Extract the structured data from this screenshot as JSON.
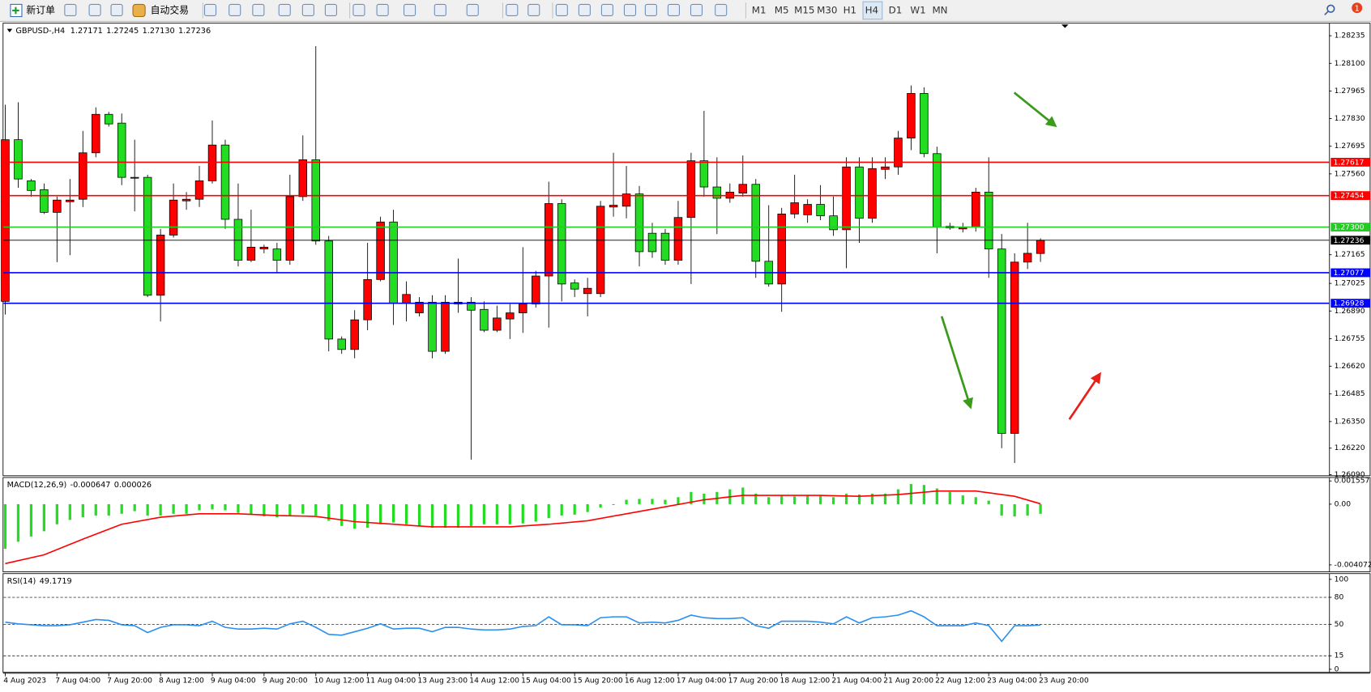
{
  "toolbar": {
    "new_order": "新订单",
    "auto_trading": "自动交易",
    "timeframes": [
      "M1",
      "M5",
      "M15",
      "M30",
      "H1",
      "H4",
      "D1",
      "W1",
      "MN"
    ],
    "notification": "1"
  },
  "chart_data": [
    {
      "type": "candlestick",
      "symbol": "GBPUSD-,H4",
      "quote_labels": [
        "1.27171",
        "1.27245",
        "1.27130",
        "1.27236"
      ],
      "up_color": "#ff0000",
      "down_color": "#22dd22",
      "categories": [
        "4 Aug 2023",
        null,
        null,
        null,
        "7 Aug 04:00",
        null,
        null,
        null,
        "7 Aug 20:00",
        null,
        null,
        null,
        "8 Aug 12:00",
        null,
        null,
        null,
        "9 Aug 04:00",
        null,
        null,
        null,
        "9 Aug 20:00",
        null,
        null,
        null,
        "10 Aug 12:00",
        null,
        null,
        null,
        "11 Aug 04:00",
        null,
        null,
        null,
        "13 Aug 23:00",
        null,
        null,
        null,
        "14 Aug 12:00",
        null,
        null,
        null,
        "15 Aug 04:00",
        null,
        null,
        null,
        "15 Aug 20:00",
        null,
        null,
        null,
        "16 Aug 12:00",
        null,
        null,
        null,
        "17 Aug 04:00",
        null,
        null,
        null,
        "17 Aug 20:00",
        null,
        null,
        null,
        "18 Aug 12:00",
        null,
        null,
        null,
        "21 Aug 04:00",
        null,
        null,
        null,
        "21 Aug 20:00",
        null,
        null,
        null,
        "22 Aug 12:00",
        null,
        null,
        null,
        "23 Aug 04:00",
        null,
        null,
        null,
        "23 Aug 20:00"
      ],
      "open": [
        1.26937,
        1.27727,
        1.27526,
        1.27483,
        1.27372,
        1.27424,
        1.27436,
        1.27663,
        1.27851,
        1.27808,
        1.27539,
        1.27543,
        1.26967,
        1.27261,
        1.27428,
        1.27436,
        1.27526,
        1.27701,
        1.27338,
        1.27138,
        1.27193,
        1.27193,
        1.27138,
        1.27449,
        1.27629,
        1.27232,
        1.26753,
        1.26702,
        1.26847,
        1.27044,
        1.27325,
        1.26928,
        1.26881,
        1.26933,
        1.26693,
        1.26924,
        1.26933,
        1.26898,
        1.26796,
        1.26851,
        1.26881,
        1.26924,
        1.27061,
        1.27415,
        1.27027,
        1.26975,
        1.26975,
        1.27398,
        1.27402,
        1.27462,
        1.2727,
        1.2727,
        1.27138,
        1.27347,
        1.27624,
        1.27496,
        1.27441,
        1.27466,
        1.27509,
        1.27133,
        1.27022,
        1.27364,
        1.2736,
        1.27411,
        1.27355,
        1.27287,
        1.27594,
        1.27343,
        1.27582,
        1.27594,
        1.27735,
        1.27953,
        1.27659,
        1.27296,
        1.27291,
        1.273,
        1.27471,
        1.27193,
        1.26292,
        1.27129,
        1.27171
      ],
      "high": [
        1.27898,
        1.2791,
        1.27535,
        1.27513,
        1.27449,
        1.27535,
        1.2777,
        1.27885,
        1.27863,
        1.27855,
        1.27727,
        1.27556,
        1.27291,
        1.27513,
        1.27471,
        1.27599,
        1.27821,
        1.27727,
        1.27513,
        1.27385,
        1.27214,
        1.27223,
        1.27556,
        1.27748,
        1.28184,
        1.27257,
        1.26766,
        1.26894,
        1.27223,
        1.27351,
        1.27385,
        1.27035,
        1.26958,
        1.26967,
        1.26967,
        1.27146,
        1.26958,
        1.26937,
        1.26916,
        1.26924,
        1.27202,
        1.27086,
        1.27522,
        1.27436,
        1.27044,
        1.27052,
        1.27428,
        1.27663,
        1.27599,
        1.27501,
        1.27321,
        1.27291,
        1.27428,
        1.27663,
        1.27868,
        1.27641,
        1.27513,
        1.2765,
        1.27535,
        1.27407,
        1.27394,
        1.27556,
        1.27436,
        1.27505,
        1.27449,
        1.27641,
        1.27641,
        1.27641,
        1.27641,
        1.2777,
        1.27992,
        1.27983,
        1.27693,
        1.27321,
        1.27321,
        1.27492,
        1.27641,
        1.27266,
        1.27172,
        1.27321,
        1.27245
      ],
      "low": [
        1.26873,
        1.27492,
        1.27449,
        1.27364,
        1.27129,
        1.27163,
        1.27398,
        1.27641,
        1.27791,
        1.27505,
        1.27377,
        1.26958,
        1.26839,
        1.27249,
        1.27385,
        1.27398,
        1.27513,
        1.27291,
        1.27108,
        1.27129,
        1.27172,
        1.27078,
        1.27116,
        1.27428,
        1.27214,
        1.26693,
        1.26681,
        1.26659,
        1.26796,
        1.27035,
        1.26822,
        1.26839,
        1.26864,
        1.26659,
        1.26681,
        1.26881,
        1.26164,
        1.26787,
        1.26787,
        1.26753,
        1.26783,
        1.26907,
        1.26809,
        1.26937,
        1.26958,
        1.26864,
        1.26958,
        1.27351,
        1.27343,
        1.27108,
        1.2715,
        1.27116,
        1.27116,
        1.27022,
        1.27449,
        1.27266,
        1.27419,
        1.27449,
        1.27052,
        1.27009,
        1.26886,
        1.27343,
        1.27321,
        1.27334,
        1.27257,
        1.27099,
        1.27223,
        1.27321,
        1.27535,
        1.27556,
        1.27676,
        1.27641,
        1.27172,
        1.27287,
        1.27274,
        1.27278,
        1.27052,
        1.2622,
        1.26147,
        1.27095,
        1.2713
      ],
      "close": [
        1.27727,
        1.27535,
        1.27479,
        1.27372,
        1.27432,
        1.27432,
        1.27663,
        1.27851,
        1.27804,
        1.27543,
        1.27543,
        1.26967,
        1.27261,
        1.27432,
        1.27436,
        1.27526,
        1.27701,
        1.27338,
        1.27138,
        1.27202,
        1.27202,
        1.27138,
        1.27449,
        1.27629,
        1.27232,
        1.26753,
        1.26702,
        1.26847,
        1.27044,
        1.27325,
        1.26928,
        1.26971,
        1.26933,
        1.26693,
        1.26933,
        1.26933,
        1.26894,
        1.26796,
        1.26856,
        1.26881,
        1.26924,
        1.27061,
        1.27415,
        1.27022,
        1.26997,
        1.27001,
        1.27402,
        1.27407,
        1.27462,
        1.2718,
        1.2718,
        1.27138,
        1.27347,
        1.27624,
        1.27496,
        1.27441,
        1.27471,
        1.27509,
        1.27133,
        1.27022,
        1.27364,
        1.27419,
        1.27411,
        1.27355,
        1.27287,
        1.27594,
        1.27343,
        1.27586,
        1.27594,
        1.27735,
        1.27953,
        1.27659,
        1.273,
        1.27304,
        1.273,
        1.27471,
        1.27193,
        1.26292,
        1.27129,
        1.27172,
        1.27236
      ],
      "ylim": [
        1.26083,
        1.2829
      ],
      "yticks": [
        1.28235,
        {
          "value": 1.281,
          "label": "1.28100"
        },
        1.27965,
        {
          "value": 1.2783,
          "label": "1.27830"
        },
        1.27695,
        {
          "value": 1.2756,
          "label": "1.27560"
        },
        1.27165,
        1.27025,
        {
          "value": 1.2689,
          "label": "1.26890"
        },
        1.26755,
        {
          "value": 1.2662,
          "label": "1.26620"
        },
        1.26485,
        {
          "value": 1.2635,
          "label": "1.26350"
        },
        {
          "value": 1.2622,
          "label": "1.26220"
        },
        {
          "value": 1.2609,
          "label": "1.26090"
        }
      ],
      "hlines": [
        {
          "value": 1.27617,
          "color": "#ff0000"
        },
        {
          "value": 1.27454,
          "color": "#ff0000"
        },
        {
          "value": 1.273,
          "label": "1.27300",
          "color": "#22cc22"
        },
        {
          "value": 1.27077,
          "color": "#0000ff"
        },
        {
          "value": 1.26928,
          "color": "#0000ff"
        }
      ],
      "current_price_color": "#000000"
    },
    {
      "type": "macd",
      "title": "MACD(12,26,9)",
      "histogram": {
        "color": "#22dd22",
        "values": [
          -0.002989,
          -0.00252,
          -0.002168,
          -0.001817,
          -0.001348,
          -0.001055,
          -0.000879,
          -0.000762,
          -0.000762,
          -0.000645,
          -0.000469,
          -0.000762,
          -0.000762,
          -0.000645,
          -0.000645,
          -0.00041,
          -0.000352,
          -0.00041,
          -0.000586,
          -0.000703,
          -0.00082,
          -0.000879,
          -0.000762,
          -0.000645,
          -0.000762,
          -0.001113,
          -0.001465,
          -0.001641,
          -0.001582,
          -0.001348,
          -0.001231,
          -0.001348,
          -0.001465,
          -0.001582,
          -0.001582,
          -0.001582,
          -0.001465,
          -0.001348,
          -0.001348,
          -0.001348,
          -0.001289,
          -0.001172,
          -0.000938,
          -0.000762,
          -0.000703,
          -0.000527,
          -0.000234,
          -5.9e-05,
          0.000293,
          0.000352,
          0.000352,
          0.000293,
          0.000469,
          0.00082,
          0.000703,
          0.00082,
          0.000996,
          0.001113,
          0.000703,
          0.000469,
          0.000586,
          0.000527,
          0.000586,
          0.000586,
          0.000469,
          0.000703,
          0.000645,
          0.000703,
          0.000703,
          0.000996,
          0.001348,
          0.001289,
          0.001055,
          0.00082,
          0.000586,
          0.000469,
          0.000234,
          -0.000762,
          -0.00082,
          -0.000762,
          -0.000647
        ]
      },
      "signal": {
        "color": "#ff0000",
        "x": [
          0,
          3,
          6,
          9,
          12,
          15,
          18,
          21,
          24,
          27,
          30,
          33,
          36,
          39,
          42,
          45,
          48,
          51,
          54,
          57,
          60,
          63,
          66,
          69,
          72,
          75,
          78,
          80
        ],
        "values": [
          -0.003985,
          -0.003399,
          -0.002344,
          -0.001348,
          -0.000879,
          -0.000645,
          -0.000645,
          -0.000762,
          -0.00082,
          -0.001172,
          -0.001348,
          -0.001524,
          -0.001524,
          -0.001524,
          -0.001348,
          -0.001113,
          -0.000645,
          -0.000176,
          0.000293,
          0.000586,
          0.000586,
          0.000586,
          0.000527,
          0.000645,
          0.000879,
          0.000879,
          0.000527,
          2.6e-05
        ]
      },
      "ylim": [
        -0.00457,
        0.0017
      ],
      "yticks": [
        0.001557,
        {
          "value": 0,
          "label": "0.00"
        },
        -0.004072
      ]
    },
    {
      "type": "line",
      "title": "RSI(14)",
      "color": "#2a8ff0",
      "values": [
        52.4,
        50.5,
        49.5,
        48.5,
        48.5,
        49.5,
        52.4,
        55.3,
        54.4,
        49.5,
        48.5,
        40.8,
        46.6,
        49.5,
        49.5,
        48.5,
        53.4,
        46.6,
        44.7,
        44.7,
        45.6,
        44.7,
        50.5,
        53.4,
        46.6,
        38.8,
        37.9,
        41.7,
        45.6,
        50.5,
        44.7,
        45.6,
        45.6,
        41.7,
        46.6,
        46.6,
        44.7,
        43.7,
        43.7,
        44.7,
        47.6,
        48.5,
        58.3,
        49.5,
        49.5,
        48.5,
        57.3,
        58.3,
        58.3,
        51.5,
        52.4,
        51.5,
        54.4,
        60.2,
        57.3,
        56.3,
        56.3,
        57.3,
        48.5,
        45.6,
        53.4,
        53.4,
        53.4,
        52.4,
        50.5,
        58.3,
        51.5,
        57.3,
        58.3,
        60.2,
        65.0,
        58.3,
        48.5,
        48.5,
        48.5,
        51.5,
        48.5,
        31.1,
        48.5,
        48.5,
        49.1719
      ],
      "levels": [
        80,
        50,
        15
      ],
      "ylim": [
        -3.9,
        104.9
      ],
      "yticks": [
        100,
        80,
        50,
        15,
        0
      ]
    }
  ]
}
